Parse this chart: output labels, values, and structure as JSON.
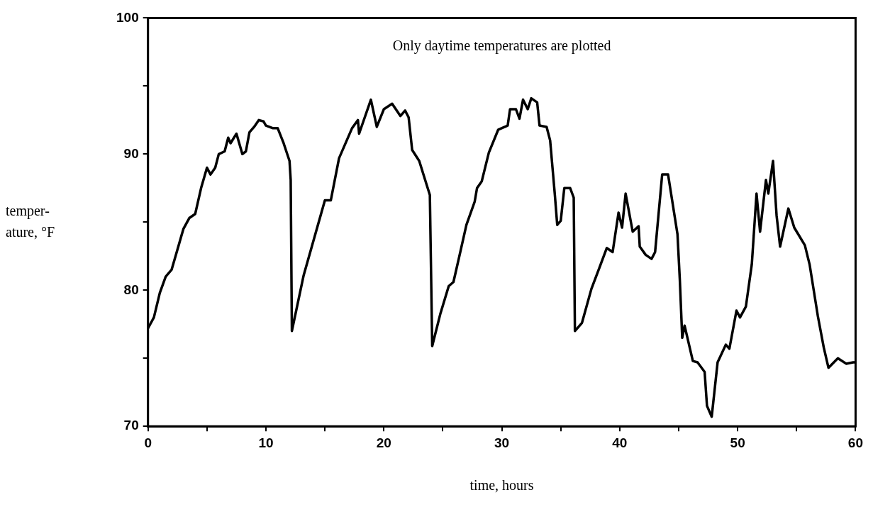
{
  "chart_data": {
    "type": "line",
    "xlabel": "time, hours",
    "ylabel": "temper-\nature, °F",
    "annotations": [
      "Only daytime temperatures are plotted"
    ],
    "xlim": [
      0,
      60
    ],
    "ylim": [
      70,
      100
    ],
    "xticks": [
      0,
      {
        "value": 5,
        "label": null
      },
      10,
      {
        "value": 15,
        "label": null
      },
      20,
      {
        "value": 25,
        "label": null
      },
      30,
      {
        "value": 35,
        "label": null
      },
      40,
      {
        "value": 45,
        "label": null
      },
      50,
      {
        "value": 55,
        "label": null
      },
      60
    ],
    "yticks": [
      70,
      {
        "value": 75,
        "label": null
      },
      80,
      {
        "value": 85,
        "label": null
      },
      90,
      {
        "value": 95,
        "label": null
      },
      100
    ],
    "grid": false,
    "legend": false,
    "marker": "none",
    "line_style": "solid",
    "series": [
      {
        "color": "#000000",
        "x": [
          0,
          0.5,
          1,
          1.5,
          2,
          2.5,
          3,
          3.5,
          4,
          4.5,
          5,
          5.3,
          5.7,
          6,
          6.5,
          6.8,
          7,
          7.5,
          8,
          8.3,
          8.6,
          9,
          9.4,
          9.8,
          10,
          10.6,
          11,
          11.5,
          12,
          12.1,
          12.2,
          13.2,
          15.0,
          15.5,
          16.2,
          17.3,
          17.8,
          17.9,
          18.9,
          19.4,
          20.0,
          20.7,
          21.4,
          21.8,
          22.1,
          22.4,
          23.0,
          23.5,
          23.9,
          24.1,
          24.8,
          25.5,
          25.9,
          26.4,
          27.0,
          27.7,
          27.9,
          28.3,
          28.9,
          29.7,
          30.5,
          30.7,
          31.2,
          31.5,
          31.8,
          32.2,
          32.5,
          33.0,
          33.2,
          33.8,
          34.1,
          34.5,
          34.7,
          35.0,
          35.3,
          35.8,
          36.1,
          36.2,
          36.8,
          37.6,
          38.3,
          38.9,
          39.4,
          39.9,
          40.2,
          40.5,
          41.1,
          41.6,
          41.7,
          42.2,
          42.7,
          43.0,
          43.6,
          44.1,
          44.9,
          45.1,
          45.3,
          45.5,
          46.2,
          46.6,
          47.2,
          47.4,
          47.8,
          48.3,
          49.0,
          49.3,
          49.9,
          50.2,
          50.7,
          51.2,
          51.6,
          51.9,
          52.4,
          52.6,
          53.0,
          53.3,
          53.6,
          54.3,
          54.8,
          55.7,
          56.1,
          56.8,
          57.3,
          57.7,
          58.5,
          59.2,
          59.8,
          60
        ],
        "values": [
          77.2,
          78,
          79.8,
          81,
          81.5,
          83,
          84.5,
          85.3,
          85.6,
          87.5,
          89,
          88.5,
          89,
          90,
          90.2,
          91.2,
          90.8,
          91.5,
          90,
          90.2,
          91.6,
          92,
          92.5,
          92.4,
          92.1,
          91.9,
          91.9,
          90.8,
          89.5,
          88.1,
          77.0,
          81.1,
          86.6,
          86.6,
          89.7,
          91.9,
          92.5,
          91.5,
          94.0,
          92.0,
          93.3,
          93.7,
          92.8,
          93.2,
          92.7,
          90.3,
          89.5,
          88.1,
          87.0,
          75.9,
          78.3,
          80.3,
          80.6,
          82.5,
          84.8,
          86.5,
          87.5,
          88.0,
          90.1,
          91.8,
          92.1,
          93.3,
          93.3,
          92.6,
          94.0,
          93.3,
          94.1,
          93.8,
          92.1,
          92.0,
          91.0,
          87.0,
          84.8,
          85.1,
          87.5,
          87.5,
          86.8,
          77.0,
          77.6,
          80.1,
          81.7,
          83.1,
          82.8,
          85.7,
          84.6,
          87.1,
          84.3,
          84.7,
          83.2,
          82.6,
          82.3,
          82.8,
          88.5,
          88.5,
          84.1,
          80.7,
          76.5,
          77.4,
          74.8,
          74.7,
          74.0,
          71.5,
          70.7,
          74.7,
          76.0,
          75.7,
          78.5,
          78.0,
          78.8,
          81.9,
          87.1,
          84.3,
          88.1,
          87.1,
          89.5,
          85.5,
          83.2,
          86.0,
          84.6,
          83.3,
          81.9,
          78.1,
          75.8,
          74.3,
          75.0,
          74.6,
          74.7,
          74.7
        ]
      }
    ]
  }
}
